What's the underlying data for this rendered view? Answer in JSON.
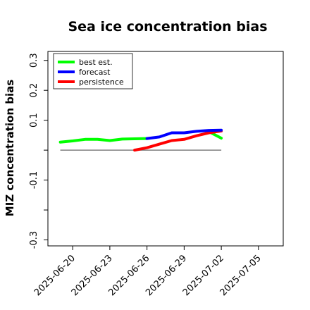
{
  "chart_data": {
    "type": "line",
    "title": "Sea ice concentration bias",
    "ylabel": "MIZ concentration bias",
    "xlabel": "",
    "ylim": [
      -0.32,
      0.33
    ],
    "xlim": [
      "2025-06-18",
      "2025-07-07"
    ],
    "yticks": [
      -0.3,
      -0.2,
      -0.1,
      0.0,
      0.1,
      0.2,
      0.3
    ],
    "ytick_labels": [
      "-0.3",
      "",
      "-0.1",
      "",
      "0.1",
      "0.2",
      "0.3"
    ],
    "xticks": [
      "2025-06-20",
      "2025-06-23",
      "2025-06-26",
      "2025-06-29",
      "2025-07-02",
      "2025-07-05"
    ],
    "highlight_xtick": "2025-06-26",
    "highlight_color": "#228b22",
    "zero_line": {
      "value": 0.0,
      "x_start": "2025-06-19",
      "x_end": "2025-07-02",
      "color": "#808080"
    },
    "legend": {
      "placement": "top-left",
      "entries": [
        "best est.",
        "forecast",
        "persistence"
      ]
    },
    "series": [
      {
        "name": "best est.",
        "color": "#00ff00",
        "x": [
          "2025-06-19",
          "2025-06-20",
          "2025-06-21",
          "2025-06-22",
          "2025-06-23",
          "2025-06-24",
          "2025-06-25",
          "2025-06-26"
        ],
        "y": [
          0.027,
          0.031,
          0.036,
          0.036,
          0.032,
          0.037,
          0.038,
          0.039
        ]
      },
      {
        "name": "forecast",
        "color": "#0000ff",
        "x": [
          "2025-06-26",
          "2025-06-27",
          "2025-06-28",
          "2025-06-29",
          "2025-06-30",
          "2025-07-01",
          "2025-07-02"
        ],
        "y": [
          0.039,
          0.044,
          0.058,
          0.058,
          0.063,
          0.066,
          0.067
        ]
      },
      {
        "name": "persistence",
        "color": "#ff0000",
        "x": [
          "2025-06-25",
          "2025-06-26",
          "2025-06-27",
          "2025-06-28",
          "2025-06-29",
          "2025-06-30",
          "2025-07-01",
          "2025-07-02"
        ],
        "y": [
          0.0,
          0.008,
          0.02,
          0.032,
          0.036,
          0.048,
          0.058,
          0.064
        ]
      },
      {
        "name": "best est.",
        "color": "#00ff00",
        "x": [
          "2025-07-01",
          "2025-07-02"
        ],
        "y": [
          0.062,
          0.04
        ]
      }
    ]
  }
}
